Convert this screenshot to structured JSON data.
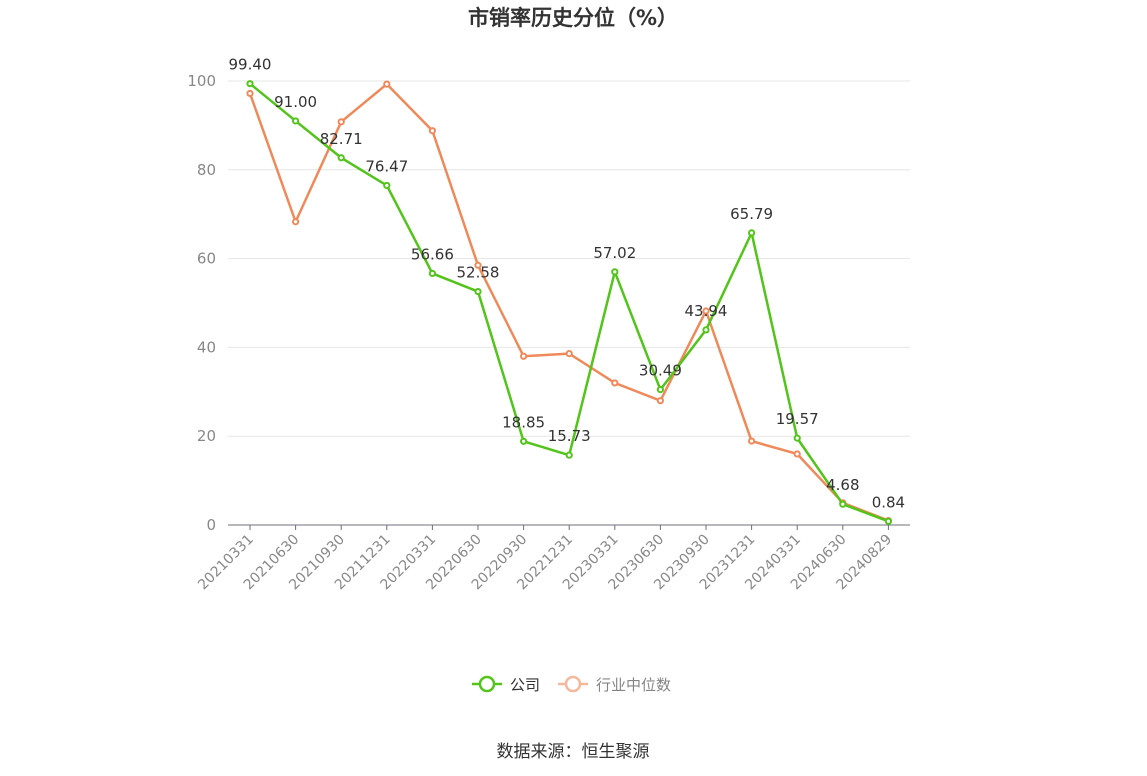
{
  "chart_data": {
    "type": "line",
    "title": "市销率历史分位（%）",
    "x": [
      "20210331",
      "20210630",
      "20210930",
      "20211231",
      "20220331",
      "20220630",
      "20220930",
      "20221231",
      "20230331",
      "20230630",
      "20230930",
      "20231231",
      "20240331",
      "20240630",
      "20240829"
    ],
    "ylim": [
      0,
      100
    ],
    "yticks": [
      0,
      20,
      40,
      60,
      80,
      100
    ],
    "grid": true,
    "legend_position": "bottom",
    "series": [
      {
        "name": "公司",
        "color": "#52c41a",
        "values": [
          99.4,
          91.0,
          82.71,
          76.47,
          56.66,
          52.58,
          18.85,
          15.73,
          57.02,
          30.49,
          43.94,
          65.79,
          19.57,
          4.68,
          0.84
        ],
        "labels": [
          "99.40",
          "91.00",
          "82.71",
          "76.47",
          "56.66",
          "52.58",
          "18.85",
          "15.73",
          "57.02",
          "30.49",
          "43.94",
          "65.79",
          "19.57",
          "4.68",
          "0.84"
        ]
      },
      {
        "name": "行业中位数",
        "color": "#f0895a",
        "values": [
          97.2,
          68.3,
          90.8,
          99.3,
          88.8,
          58.5,
          38.0,
          38.6,
          32.0,
          28.0,
          48.2,
          18.9,
          16.0,
          5.0,
          1.0
        ]
      }
    ]
  },
  "source": "数据来源：恒生聚源"
}
